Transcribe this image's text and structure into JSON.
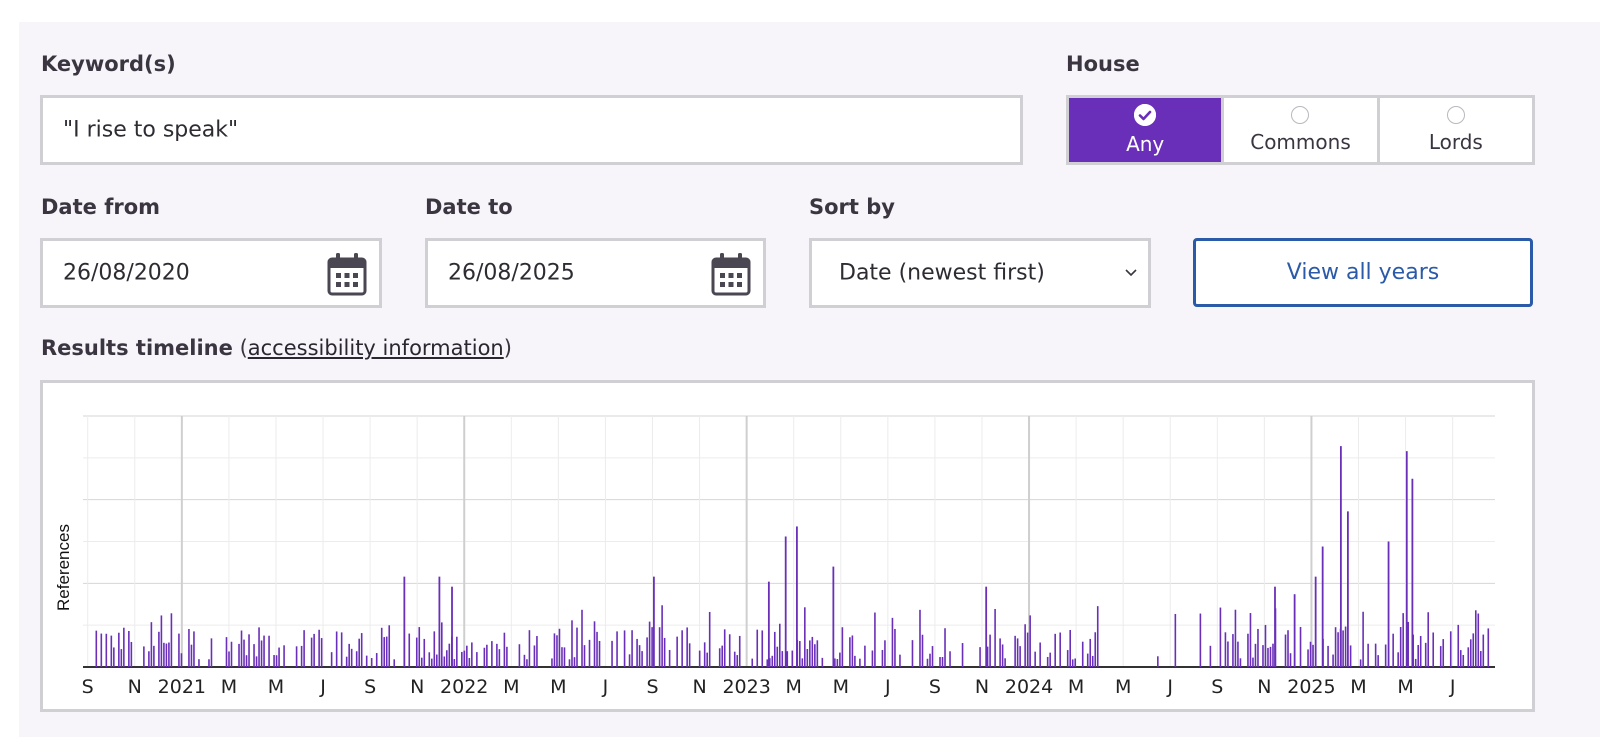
{
  "form": {
    "keyword_label": "Keyword(s)",
    "keyword_value": "\"I rise to speak\"",
    "house_label": "House",
    "house_options": [
      {
        "label": "Any",
        "selected": true
      },
      {
        "label": "Commons",
        "selected": false
      },
      {
        "label": "Lords",
        "selected": false
      }
    ],
    "date_from_label": "Date from",
    "date_from_value": "26/08/2020",
    "date_to_label": "Date to",
    "date_to_value": "26/08/2025",
    "sort_label": "Sort by",
    "sort_value": "Date (newest first)",
    "view_all_label": "View all years"
  },
  "timeline": {
    "title": "Results timeline",
    "paren_open": "(",
    "link": "accessibility information",
    "paren_close": ")"
  },
  "colors": {
    "accent": "#6a2fb8",
    "button_border": "#2a5aa8",
    "panel_bg": "#f7f5fa"
  },
  "icons": [
    "calendar-icon",
    "chevron-down-icon",
    "check-icon"
  ],
  "chart_data": {
    "type": "bar",
    "ylabel": "References",
    "xlabel": "",
    "x_tick_labels": [
      "S",
      "N",
      "2021",
      "M",
      "M",
      "J",
      "S",
      "N",
      "2022",
      "M",
      "M",
      "J",
      "S",
      "N",
      "2023",
      "M",
      "M",
      "J",
      "S",
      "N",
      "2024",
      "M",
      "M",
      "J",
      "S",
      "N",
      "2025",
      "M",
      "M",
      "J"
    ],
    "x_range": [
      "2020-08-26",
      "2025-08-26"
    ],
    "grid": true,
    "series": [
      {
        "values_approx": [
          [
            16,
            2
          ],
          [
            17,
            3
          ],
          [
            18,
            1
          ],
          [
            19,
            2
          ],
          [
            21,
            3
          ],
          [
            22,
            2
          ],
          [
            25,
            1
          ],
          [
            26,
            3
          ],
          [
            27,
            1
          ],
          [
            29,
            2
          ],
          [
            30,
            1
          ],
          [
            33,
            1
          ],
          [
            35,
            1
          ],
          [
            37,
            2
          ],
          [
            38,
            1
          ],
          [
            40,
            1
          ],
          [
            42,
            2
          ],
          [
            45,
            1
          ],
          [
            48,
            1
          ],
          [
            50,
            2
          ],
          [
            53,
            1
          ],
          [
            55,
            1
          ],
          [
            58,
            1
          ],
          [
            60,
            1
          ],
          [
            62,
            2
          ],
          [
            65,
            1
          ],
          [
            67,
            1
          ],
          [
            70,
            1
          ],
          [
            72,
            1
          ],
          [
            74,
            2
          ],
          [
            78,
            1
          ],
          [
            80,
            1
          ],
          [
            85,
            1
          ],
          [
            88,
            1
          ],
          [
            90,
            3
          ],
          [
            92,
            1
          ],
          [
            95,
            1
          ],
          [
            98,
            1
          ],
          [
            102,
            1
          ],
          [
            105,
            1
          ],
          [
            108,
            2
          ],
          [
            110,
            1
          ],
          [
            112,
            1
          ],
          [
            115,
            3
          ],
          [
            118,
            1
          ],
          [
            122,
            1
          ],
          [
            128,
            1
          ],
          [
            132,
            1
          ],
          [
            135,
            1
          ],
          [
            138,
            3
          ],
          [
            140,
            1
          ],
          [
            145,
            1
          ],
          [
            150,
            1
          ],
          [
            152,
            1
          ],
          [
            155,
            1
          ],
          [
            158,
            1
          ],
          [
            162,
            1
          ],
          [
            165,
            1
          ],
          [
            168,
            1
          ],
          [
            172,
            1
          ],
          [
            176,
            1
          ],
          [
            180,
            1
          ],
          [
            185,
            1
          ],
          [
            190,
            2
          ],
          [
            195,
            1
          ],
          [
            198,
            1
          ],
          [
            200,
            1
          ],
          [
            205,
            1
          ],
          [
            210,
            1
          ],
          [
            212,
            1
          ],
          [
            215,
            1
          ],
          [
            220,
            1
          ],
          [
            225,
            1
          ],
          [
            230,
            1
          ],
          [
            235,
            1
          ],
          [
            240,
            1
          ],
          [
            245,
            1
          ],
          [
            250,
            1
          ],
          [
            255,
            1
          ],
          [
            260,
            1
          ],
          [
            265,
            1
          ],
          [
            270,
            1
          ],
          [
            275,
            1
          ],
          [
            280,
            1
          ],
          [
            285,
            1
          ],
          [
            290,
            1
          ],
          [
            295,
            1
          ],
          [
            300,
            1
          ],
          [
            305,
            1
          ],
          [
            310,
            1
          ],
          [
            315,
            1
          ],
          [
            320,
            1
          ],
          [
            325,
            1
          ],
          [
            330,
            1
          ],
          [
            335,
            1
          ],
          [
            340,
            1
          ],
          [
            345,
            1
          ],
          [
            350,
            1
          ],
          [
            355,
            1
          ],
          [
            360,
            1
          ],
          [
            365,
            1
          ],
          [
            370,
            1
          ],
          [
            375,
            1
          ],
          [
            380,
            1
          ],
          [
            385,
            1
          ],
          [
            390,
            2
          ],
          [
            395,
            1
          ],
          [
            400,
            1
          ],
          [
            405,
            1
          ],
          [
            410,
            1
          ],
          [
            415,
            1
          ],
          [
            420,
            1
          ],
          [
            425,
            1
          ],
          [
            430,
            2
          ],
          [
            435,
            1
          ],
          [
            440,
            1
          ],
          [
            445,
            1
          ],
          [
            450,
            1
          ],
          [
            455,
            1
          ],
          [
            460,
            1
          ],
          [
            465,
            1
          ],
          [
            470,
            1
          ],
          [
            475,
            1
          ],
          [
            480,
            1
          ],
          [
            485,
            1
          ],
          [
            490,
            1
          ],
          [
            495,
            1
          ],
          [
            500,
            1
          ],
          [
            505,
            1
          ],
          [
            510,
            1
          ],
          [
            515,
            1
          ],
          [
            520,
            1
          ],
          [
            525,
            1
          ],
          [
            530,
            1
          ],
          [
            535,
            1
          ],
          [
            540,
            1
          ],
          [
            545,
            1
          ],
          [
            550,
            1
          ],
          [
            555,
            1
          ],
          [
            560,
            1
          ],
          [
            565,
            1
          ],
          [
            570,
            1
          ],
          [
            575,
            1
          ],
          [
            580,
            1
          ],
          [
            585,
            1
          ],
          [
            590,
            1
          ],
          [
            595,
            1
          ],
          [
            600,
            1
          ],
          [
            605,
            1
          ],
          [
            610,
            1
          ],
          [
            615,
            1
          ],
          [
            620,
            1
          ],
          [
            625,
            1
          ],
          [
            630,
            1
          ],
          [
            635,
            1
          ],
          [
            640,
            1
          ],
          [
            645,
            1
          ],
          [
            650,
            1
          ],
          [
            655,
            1
          ],
          [
            660,
            1
          ],
          [
            665,
            1
          ],
          [
            670,
            1
          ],
          [
            675,
            1
          ],
          [
            680,
            1
          ],
          [
            685,
            1
          ],
          [
            690,
            1
          ],
          [
            695,
            1
          ],
          [
            700,
            1
          ],
          [
            705,
            1
          ],
          [
            710,
            1
          ],
          [
            715,
            1
          ],
          [
            720,
            1
          ],
          [
            725,
            1
          ],
          [
            730,
            1
          ],
          [
            735,
            1
          ],
          [
            740,
            1
          ],
          [
            745,
            1
          ],
          [
            750,
            1
          ],
          [
            755,
            1
          ],
          [
            760,
            1
          ],
          [
            765,
            1
          ],
          [
            770,
            1
          ],
          [
            775,
            1
          ],
          [
            780,
            1
          ],
          [
            785,
            1
          ],
          [
            790,
            1
          ],
          [
            795,
            1
          ],
          [
            800,
            1
          ],
          [
            805,
            1
          ],
          [
            810,
            1
          ],
          [
            815,
            1
          ],
          [
            820,
            1
          ],
          [
            825,
            1
          ],
          [
            830,
            1
          ],
          [
            835,
            1
          ],
          [
            840,
            1
          ],
          [
            845,
            1
          ],
          [
            850,
            1
          ],
          [
            855,
            1
          ],
          [
            860,
            1
          ],
          [
            865,
            1
          ],
          [
            870,
            1
          ],
          [
            875,
            1
          ],
          [
            880,
            1
          ],
          [
            885,
            1
          ],
          [
            890,
            1
          ],
          [
            895,
            1
          ],
          [
            900,
            1
          ],
          [
            905,
            1
          ],
          [
            910,
            1
          ],
          [
            915,
            1
          ],
          [
            920,
            1
          ],
          [
            925,
            1
          ],
          [
            930,
            1
          ],
          [
            935,
            1
          ],
          [
            940,
            1
          ],
          [
            945,
            1
          ],
          [
            950,
            1
          ],
          [
            955,
            1
          ],
          [
            960,
            1
          ],
          [
            965,
            1
          ],
          [
            970,
            1
          ],
          [
            975,
            1
          ],
          [
            980,
            1
          ],
          [
            985,
            1
          ],
          [
            990,
            1
          ],
          [
            995,
            1
          ],
          [
            1000,
            1
          ]
        ]
      }
    ]
  }
}
